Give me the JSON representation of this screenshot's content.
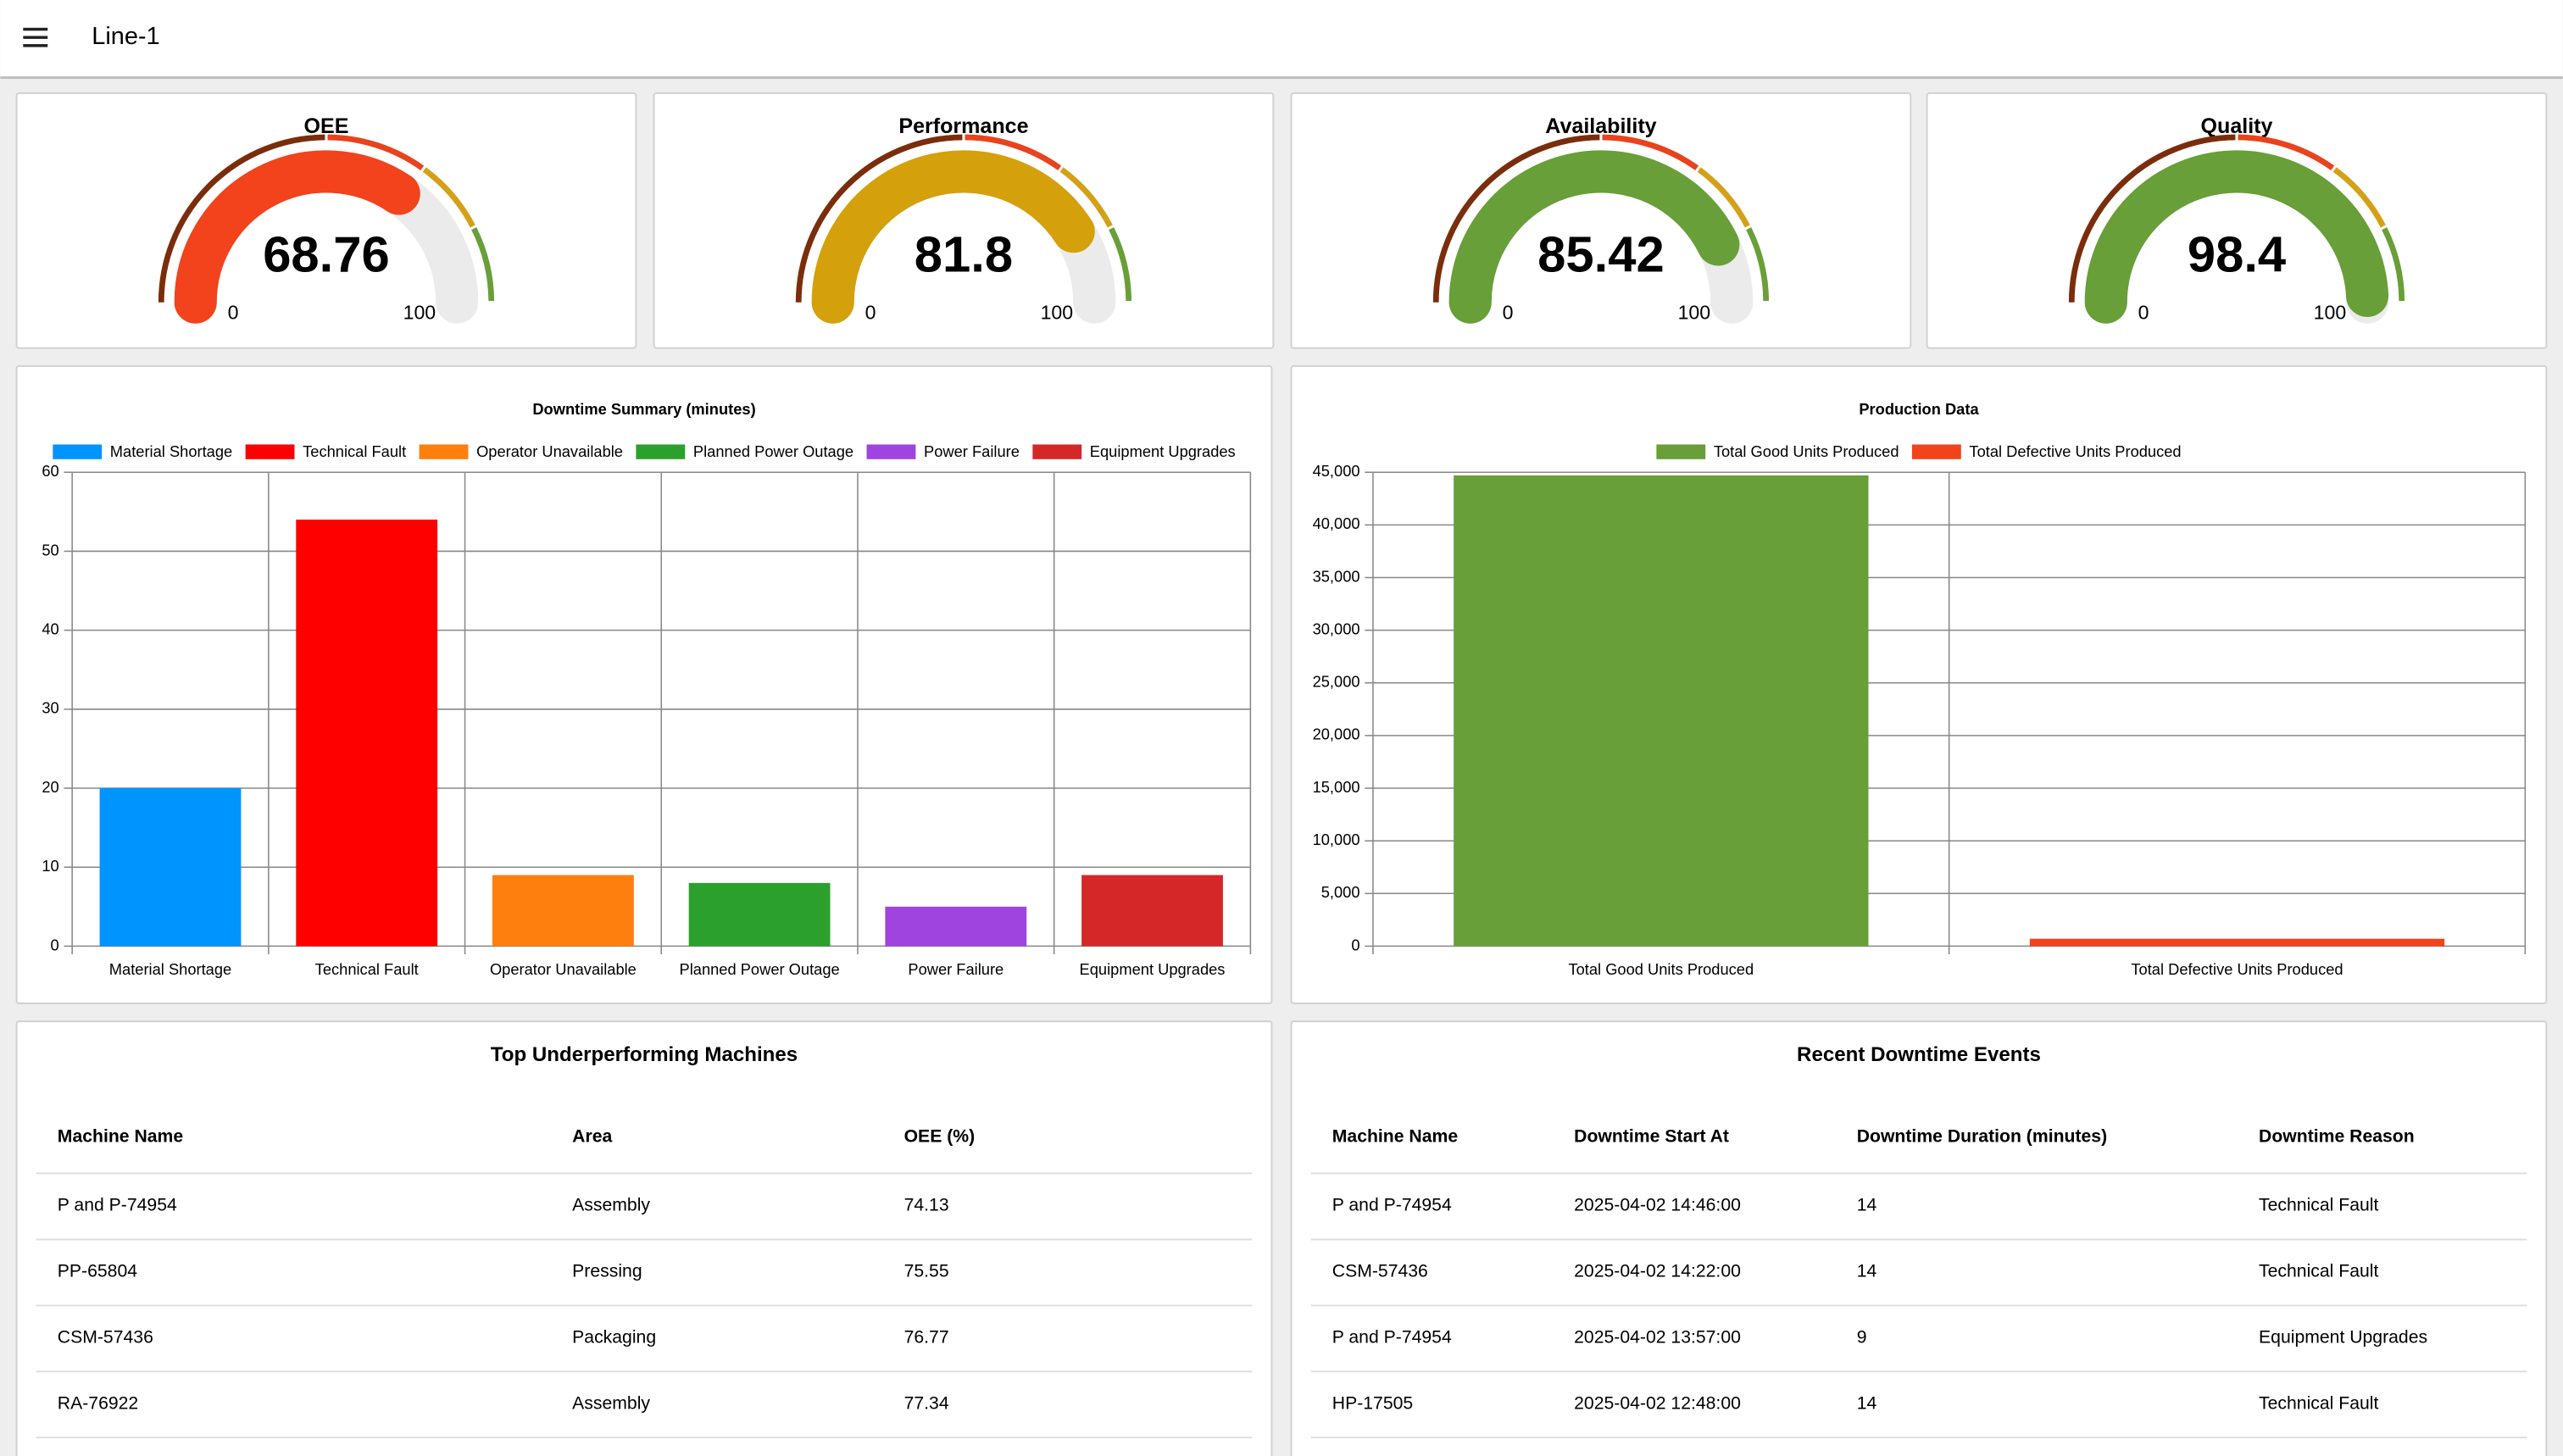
{
  "header": {
    "title": "Line-1"
  },
  "chart_data": [
    {
      "type": "gauge",
      "title": "OEE",
      "value": 68.76,
      "ylim": [
        0,
        100
      ],
      "yticks": [
        0,
        100
      ],
      "color": "#f2431d",
      "bands": [
        {
          "to": 50,
          "color": "#7b2d0b"
        },
        {
          "to": 70,
          "color": "#e8431d"
        },
        {
          "to": 85,
          "color": "#d4a017"
        },
        {
          "to": 100,
          "color": "#689f38"
        }
      ]
    },
    {
      "type": "gauge",
      "title": "Performance",
      "value": 81.8,
      "ylim": [
        0,
        100
      ],
      "yticks": [
        0,
        100
      ],
      "color": "#d4a00c",
      "bands": [
        {
          "to": 50,
          "color": "#7b2d0b"
        },
        {
          "to": 70,
          "color": "#e8431d"
        },
        {
          "to": 85,
          "color": "#d4a017"
        },
        {
          "to": 100,
          "color": "#689f38"
        }
      ]
    },
    {
      "type": "gauge",
      "title": "Availability",
      "value": 85.42,
      "ylim": [
        0,
        100
      ],
      "yticks": [
        0,
        100
      ],
      "color": "#689f38",
      "bands": [
        {
          "to": 50,
          "color": "#7b2d0b"
        },
        {
          "to": 70,
          "color": "#e8431d"
        },
        {
          "to": 85,
          "color": "#d4a017"
        },
        {
          "to": 100,
          "color": "#689f38"
        }
      ]
    },
    {
      "type": "gauge",
      "title": "Quality",
      "value": 98.4,
      "ylim": [
        0,
        100
      ],
      "yticks": [
        0,
        100
      ],
      "color": "#689f38",
      "bands": [
        {
          "to": 50,
          "color": "#7b2d0b"
        },
        {
          "to": 70,
          "color": "#e8431d"
        },
        {
          "to": 85,
          "color": "#d4a017"
        },
        {
          "to": 100,
          "color": "#689f38"
        }
      ]
    },
    {
      "type": "bar",
      "title": "Downtime Summary (minutes)",
      "categories": [
        "Material Shortage",
        "Technical Fault",
        "Operator Unavailable",
        "Planned Power Outage",
        "Power Failure",
        "Equipment Upgrades"
      ],
      "values": [
        20,
        54,
        9,
        8,
        5,
        9
      ],
      "colors": [
        "#0094ff",
        "#ff0000",
        "#ff7f0e",
        "#2ca02c",
        "#a044e0",
        "#d62728"
      ],
      "ylim": [
        0,
        60
      ],
      "yticks": [
        0,
        10,
        20,
        30,
        40,
        50,
        60
      ],
      "grid": true,
      "legend": "top"
    },
    {
      "type": "bar",
      "title": "Production Data",
      "categories": [
        "Total Good Units Produced",
        "Total Defective Units Produced"
      ],
      "values": [
        44700,
        700
      ],
      "colors": [
        "#689f38",
        "#f2431d"
      ],
      "ylim": [
        0,
        45000
      ],
      "yticks": [
        0,
        {
          "value": 5000,
          "label": "5,000"
        },
        {
          "value": 10000,
          "label": "10,000"
        },
        {
          "value": 15000,
          "label": "15,000"
        },
        {
          "value": 20000,
          "label": "20,000"
        },
        {
          "value": 25000,
          "label": "25,000"
        },
        {
          "value": 30000,
          "label": "30,000"
        },
        {
          "value": 35000,
          "label": "35,000"
        },
        {
          "value": 40000,
          "label": "40,000"
        },
        {
          "value": 45000,
          "label": "45,000"
        }
      ],
      "grid": true,
      "legend": "top"
    }
  ],
  "tables": [
    {
      "title": "Top Underperforming Machines",
      "columns": [
        "Machine Name",
        "Area",
        "OEE (%)"
      ],
      "rows": [
        [
          "P and P-74954",
          "Assembly",
          "74.13"
        ],
        [
          "PP-65804",
          "Pressing",
          "75.55"
        ],
        [
          "CSM-57436",
          "Packaging",
          "76.77"
        ],
        [
          "RA-76922",
          "Assembly",
          "77.34"
        ]
      ]
    },
    {
      "title": "Recent Downtime Events",
      "columns": [
        "Machine Name",
        "Downtime Start At",
        "Downtime Duration (minutes)",
        "Downtime Reason"
      ],
      "rows": [
        [
          "P and P-74954",
          "2025-04-02 14:46:00",
          "14",
          "Technical Fault"
        ],
        [
          "CSM-57436",
          "2025-04-02 14:22:00",
          "14",
          "Technical Fault"
        ],
        [
          "P and P-74954",
          "2025-04-02 13:57:00",
          "9",
          "Equipment Upgrades"
        ],
        [
          "HP-17505",
          "2025-04-02 12:48:00",
          "14",
          "Technical Fault"
        ]
      ]
    }
  ]
}
